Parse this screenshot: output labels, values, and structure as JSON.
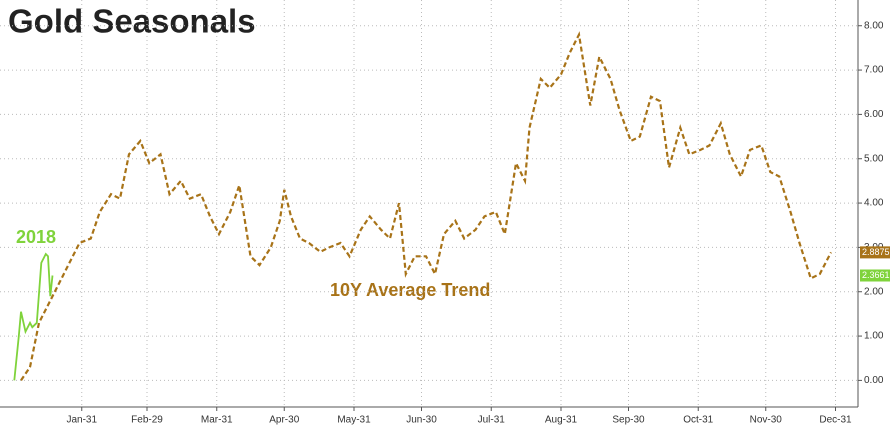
{
  "chart_data": {
    "type": "line",
    "title": "Gold Seasonals",
    "annotations": [
      "2018",
      "10Y Average Trend"
    ],
    "xlim": [
      0,
      376
    ],
    "xticks": [
      {
        "value": 31,
        "label": "Jan-31"
      },
      {
        "value": 60,
        "label": "Feb-29"
      },
      {
        "value": 91,
        "label": "Mar-31"
      },
      {
        "value": 121,
        "label": "Apr-30"
      },
      {
        "value": 152,
        "label": "May-31"
      },
      {
        "value": 182,
        "label": "Jun-30"
      },
      {
        "value": 213,
        "label": "Jul-31"
      },
      {
        "value": 244,
        "label": "Aug-31"
      },
      {
        "value": 274,
        "label": "Sep-30"
      },
      {
        "value": 305,
        "label": "Oct-31"
      },
      {
        "value": 335,
        "label": "Nov-30"
      },
      {
        "value": 366,
        "label": "Dec-31"
      }
    ],
    "ylim": [
      -0.6,
      8.4
    ],
    "yticks": [
      {
        "value": 0,
        "label": "0.00"
      },
      {
        "value": 1,
        "label": "1.00"
      },
      {
        "value": 2,
        "label": "2.00"
      },
      {
        "value": 3,
        "label": "3.00"
      },
      {
        "value": 4,
        "label": "4.00"
      },
      {
        "value": 5,
        "label": "5.00"
      },
      {
        "value": 6,
        "label": "6.00"
      },
      {
        "value": 7,
        "label": "7.00"
      },
      {
        "value": 8,
        "label": "8.00"
      }
    ],
    "grid": true,
    "series": [
      {
        "name": "10Y Average Trend",
        "color": "#a87318",
        "dashed": true,
        "x": [
          4,
          8,
          12,
          17,
          21,
          26,
          30,
          35,
          39,
          44,
          48,
          52,
          57,
          61,
          66,
          70,
          75,
          79,
          84,
          88,
          92,
          97,
          101,
          106,
          110,
          115,
          119,
          121,
          124,
          128,
          132,
          137,
          141,
          146,
          150,
          155,
          159,
          164,
          168,
          172,
          175,
          179,
          184,
          188,
          192,
          197,
          201,
          206,
          210,
          215,
          219,
          224,
          228,
          230,
          235,
          239,
          244,
          248,
          252,
          257,
          261,
          266,
          270,
          275,
          279,
          284,
          288,
          292,
          297,
          301,
          306,
          310,
          315,
          319,
          324,
          328,
          333,
          337,
          341,
          346,
          350,
          355,
          359,
          364
        ],
        "values": [
          0.0,
          0.3,
          1.3,
          1.8,
          2.2,
          2.7,
          3.1,
          3.2,
          3.8,
          4.2,
          4.1,
          5.1,
          5.4,
          4.9,
          5.1,
          4.2,
          4.5,
          4.1,
          4.2,
          3.7,
          3.3,
          3.8,
          4.4,
          2.8,
          2.6,
          3.0,
          3.6,
          4.3,
          3.7,
          3.2,
          3.1,
          2.9,
          3.0,
          3.1,
          2.8,
          3.4,
          3.7,
          3.4,
          3.2,
          4.0,
          2.4,
          2.8,
          2.8,
          2.4,
          3.3,
          3.6,
          3.2,
          3.4,
          3.7,
          3.8,
          3.3,
          4.9,
          4.5,
          5.7,
          6.8,
          6.6,
          6.9,
          7.4,
          7.8,
          6.2,
          7.3,
          6.8,
          6.1,
          5.4,
          5.5,
          6.4,
          6.3,
          4.8,
          5.7,
          5.1,
          5.2,
          5.3,
          5.8,
          5.1,
          4.6,
          5.2,
          5.3,
          4.7,
          4.6,
          3.8,
          3.1,
          2.3,
          2.4,
          2.8875
        ],
        "last_label": "2.8875"
      },
      {
        "name": "2018",
        "color": "#7fd33b",
        "dashed": false,
        "x": [
          1,
          3,
          4,
          6,
          8,
          9,
          11,
          13,
          15,
          16,
          17,
          18
        ],
        "values": [
          0,
          1.0,
          1.55,
          1.1,
          1.3,
          1.2,
          1.3,
          2.65,
          2.85,
          2.8,
          1.9,
          2.3661
        ],
        "last_label": "2.3661"
      }
    ]
  }
}
